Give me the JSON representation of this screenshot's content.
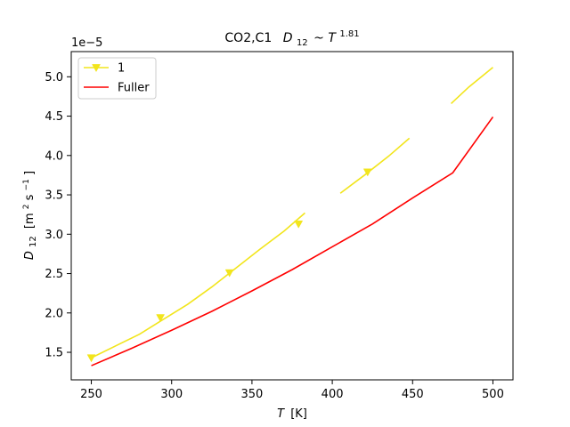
{
  "chart_data": {
    "type": "line",
    "title": "CO2,C1",
    "title_formula": {
      "symbol": "D",
      "subscript": "12",
      "tilde": "~",
      "base": "T",
      "exponent": "1.81"
    },
    "xlabel": {
      "symbol": "T",
      "unit": "[K]"
    },
    "ylabel": {
      "symbol": "D",
      "subscript": "12",
      "unit_pre": "[m",
      "unit_sup1": "2",
      "unit_mid": "s",
      "unit_sup2": "−1",
      "unit_post": "]"
    },
    "offset_text": "1e−5",
    "xlim": [
      237.5,
      512.5
    ],
    "ylim": [
      1.15,
      5.32
    ],
    "xticks": [
      250,
      300,
      350,
      400,
      450,
      500
    ],
    "yticks": [
      1.5,
      2.0,
      2.5,
      3.0,
      3.5,
      4.0,
      4.5,
      5.0
    ],
    "ytick_labels": [
      "1.5",
      "2.0",
      "2.5",
      "3.0",
      "3.5",
      "4.0",
      "4.5",
      "5.0"
    ],
    "grid": false,
    "legend_position": "upper-left",
    "series": [
      {
        "name": "1",
        "color": "#f2e51c",
        "marker": "triangle-down",
        "segments": [
          {
            "x": [
              250,
              265,
              280,
              295,
              310,
              325,
              340,
              355,
              370,
              383
            ],
            "y": [
              1.43,
              1.58,
              1.73,
              1.92,
              2.11,
              2.33,
              2.57,
              2.81,
              3.04,
              3.27
            ]
          },
          {
            "x": [
              405,
              420,
              435,
              448
            ],
            "y": [
              3.52,
              3.75,
              3.99,
              4.22
            ]
          },
          {
            "x": [
              474,
              485,
              500
            ],
            "y": [
              4.66,
              4.87,
              5.12
            ]
          }
        ],
        "markers": {
          "x": [
            250,
            293,
            336,
            379,
            422
          ],
          "y": [
            1.43,
            1.94,
            2.51,
            3.13,
            3.79
          ]
        }
      },
      {
        "name": "Fuller",
        "color": "#ff0000",
        "x": [
          250,
          275,
          300,
          325,
          350,
          375,
          400,
          425,
          450,
          475,
          500
        ],
        "y": [
          1.33,
          1.55,
          1.78,
          2.02,
          2.28,
          2.55,
          2.84,
          3.13,
          3.46,
          3.78,
          4.49
        ]
      }
    ]
  }
}
